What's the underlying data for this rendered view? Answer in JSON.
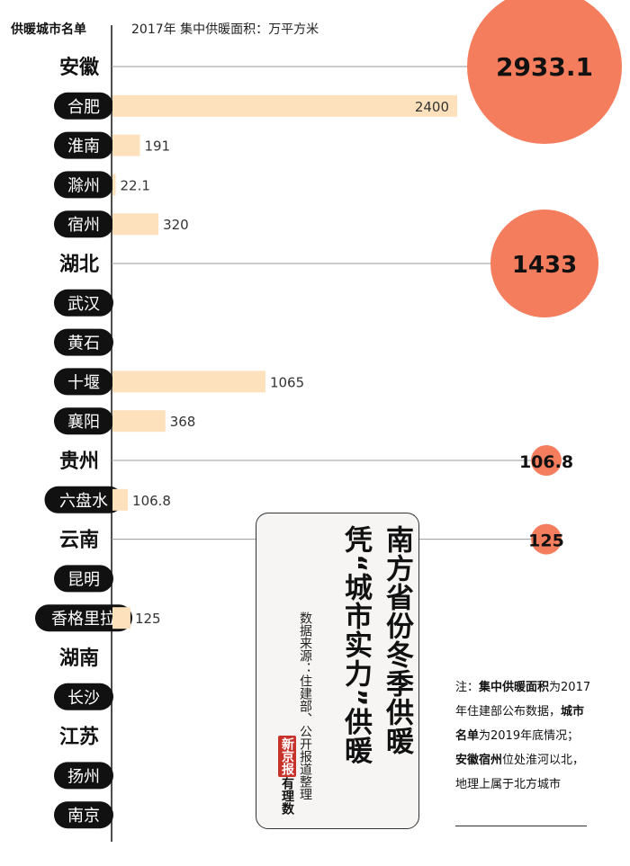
{
  "header": {
    "label": "供暖城市名单",
    "unit": "2017年 集中供暖面积：万平方米"
  },
  "chart_data": {
    "type": "bar",
    "title": "南方省份冬季供暖 凭“城市实力”供暖",
    "xlabel": "",
    "ylabel": "",
    "unit": "万平方米",
    "rows": [
      {
        "name": "安徽",
        "kind": "province",
        "value": 2933.1,
        "value_label": "2933.1"
      },
      {
        "name": "合肥",
        "kind": "city",
        "value": 2400,
        "value_label": "2400"
      },
      {
        "name": "淮南",
        "kind": "city",
        "value": 191,
        "value_label": "191"
      },
      {
        "name": "滁州",
        "kind": "city",
        "value": 22.1,
        "value_label": "22.1"
      },
      {
        "name": "宿州",
        "kind": "city",
        "value": 320,
        "value_label": "320"
      },
      {
        "name": "湖北",
        "kind": "province",
        "value": 1433,
        "value_label": "1433"
      },
      {
        "name": "武汉",
        "kind": "city",
        "value": null,
        "value_label": ""
      },
      {
        "name": "黄石",
        "kind": "city",
        "value": null,
        "value_label": ""
      },
      {
        "name": "十堰",
        "kind": "city",
        "value": 1065,
        "value_label": "1065"
      },
      {
        "name": "襄阳",
        "kind": "city",
        "value": 368,
        "value_label": "368"
      },
      {
        "name": "贵州",
        "kind": "province",
        "value": 106.8,
        "value_label": "106.8"
      },
      {
        "name": "六盘水",
        "kind": "city",
        "value": 106.8,
        "value_label": "106.8"
      },
      {
        "name": "云南",
        "kind": "province",
        "value": 125,
        "value_label": "125"
      },
      {
        "name": "昆明",
        "kind": "city",
        "value": null,
        "value_label": ""
      },
      {
        "name": "香格里拉",
        "kind": "city",
        "value": 125,
        "value_label": "125"
      },
      {
        "name": "湖南",
        "kind": "province",
        "value": null,
        "value_label": ""
      },
      {
        "name": "长沙",
        "kind": "city",
        "value": null,
        "value_label": ""
      },
      {
        "name": "江苏",
        "kind": "province",
        "value": null,
        "value_label": ""
      },
      {
        "name": "扬州",
        "kind": "city",
        "value": null,
        "value_label": ""
      },
      {
        "name": "南京",
        "kind": "city",
        "value": null,
        "value_label": ""
      }
    ],
    "grid": false,
    "legend": "none"
  },
  "title": {
    "line1": "南方省份冬季供暖",
    "line2": "凭“城市实力”供暖"
  },
  "source": "数据来源：住建部、公开报道整理",
  "brand": {
    "seal": "新京报",
    "script": "有理数"
  },
  "note": {
    "prefix": "注：",
    "term1": "集中供暖面积",
    "text1": "为2017年住建部公布数据，",
    "term2": "城市名单",
    "text2": "为2019年底情况；",
    "term3": "安徽宿州",
    "text3": "位处淮河以北，地理上属于北方城市"
  },
  "colors": {
    "bar": "#fde1bd",
    "bubble": "#f47d5d",
    "pill": "#111111",
    "pill_text": "#ffffff",
    "axis": "#222222",
    "guide": "#999999"
  }
}
